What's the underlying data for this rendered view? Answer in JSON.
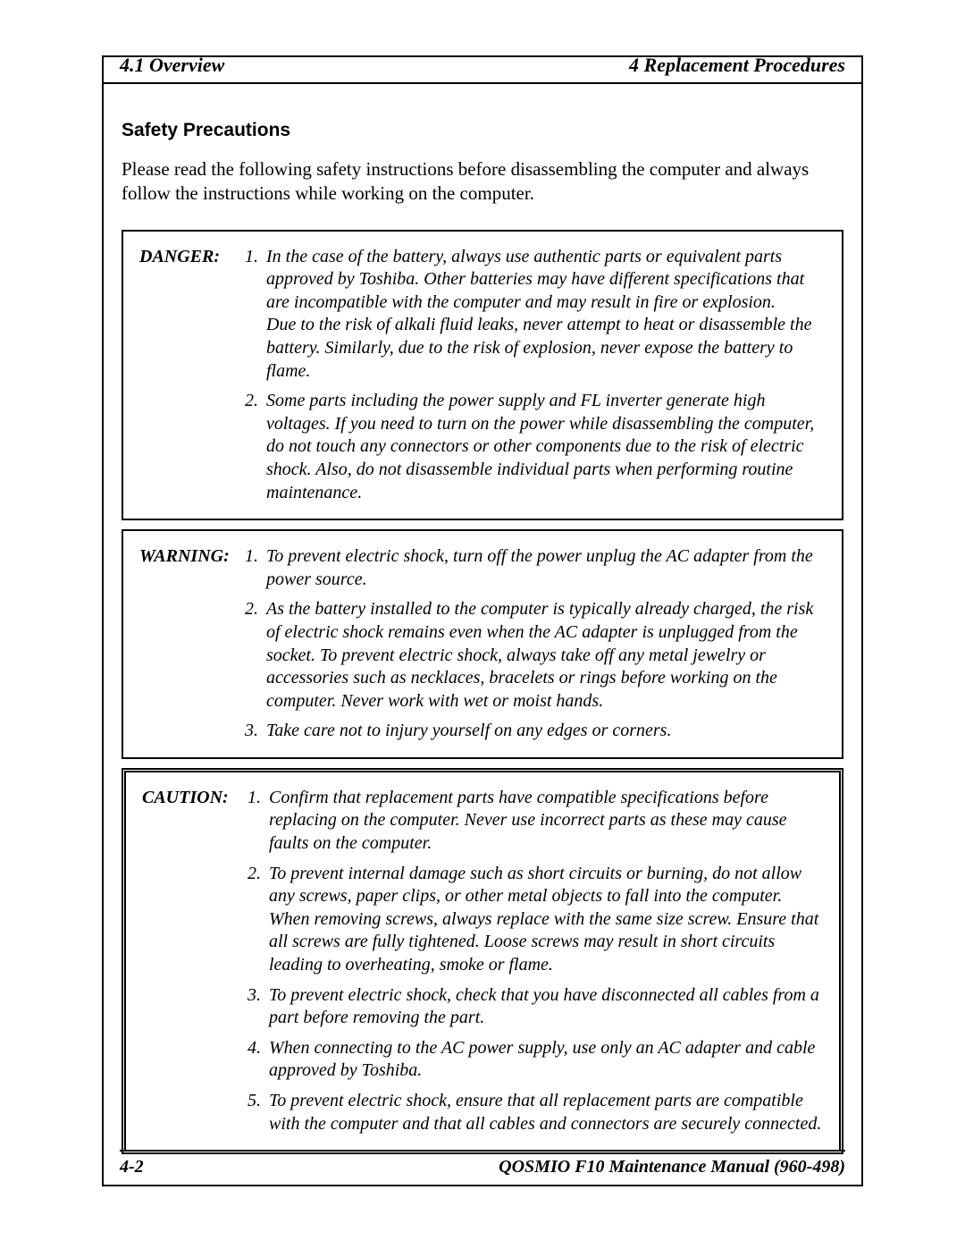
{
  "header": {
    "left": "4.1  Overview",
    "right": "4  Replacement Procedures"
  },
  "section_heading": "Safety Precautions",
  "intro": "Please read the following safety instructions before disassembling the computer and always follow the instructions while working on the computer.",
  "boxes": [
    {
      "label": "DANGER:",
      "double": false,
      "items": [
        {
          "num": "1.",
          "text": "In the case of the battery, always use authentic parts or equivalent parts approved by Toshiba. Other batteries may have different specifications that are incompatible with the computer and may result in fire or explosion.",
          "extra": "Due to the risk of alkali fluid leaks, never attempt to heat or disassemble the battery. Similarly, due to the risk of explosion, never expose the battery to flame."
        },
        {
          "num": "2.",
          "text": "Some parts including the power supply and FL inverter generate high voltages. If you need to turn on the power while disassembling the computer, do not touch any connectors or other components due to the risk of electric shock. Also, do not disassemble individual parts when performing routine maintenance."
        }
      ]
    },
    {
      "label": "WARNING:",
      "double": false,
      "items": [
        {
          "num": "1.",
          "text": "To prevent electric shock, turn off the power unplug the AC adapter from the power source."
        },
        {
          "num": "2.",
          "text": "As the battery installed to the computer is typically already charged, the risk of electric shock remains even when the AC adapter is unplugged from the socket. To prevent electric shock, always take off any metal jewelry or accessories such as necklaces, bracelets or rings before working on the computer. Never work with wet or moist hands."
        },
        {
          "num": "3.",
          "text": "Take care not to injury yourself on any edges or corners."
        }
      ]
    },
    {
      "label": "CAUTION:",
      "double": true,
      "items": [
        {
          "num": "1.",
          "text": "Confirm that replacement parts have compatible specifications before replacing on the computer. Never use incorrect parts as these may cause faults on the computer."
        },
        {
          "num": "2.",
          "text": "To prevent internal damage such as short circuits or burning, do not allow any screws, paper clips, or other metal objects to fall into the computer. When removing screws, always replace with the same size screw. Ensure that all screws are fully tightened. Loose screws may result in short circuits leading to overheating, smoke or flame."
        },
        {
          "num": "3.",
          "text": "To prevent electric shock, check that you have disconnected all cables from a part before removing the part."
        },
        {
          "num": "4.",
          "text": "When connecting to the AC power supply, use only an AC adapter and cable approved by Toshiba."
        },
        {
          "num": "5.",
          "text": "To prevent electric shock, ensure that all replacement parts are compatible with the computer and that all cables and connectors are securely connected."
        }
      ]
    }
  ],
  "footer": {
    "left": "4-2",
    "right": "QOSMIO F10  Maintenance Manual (960-498)"
  }
}
